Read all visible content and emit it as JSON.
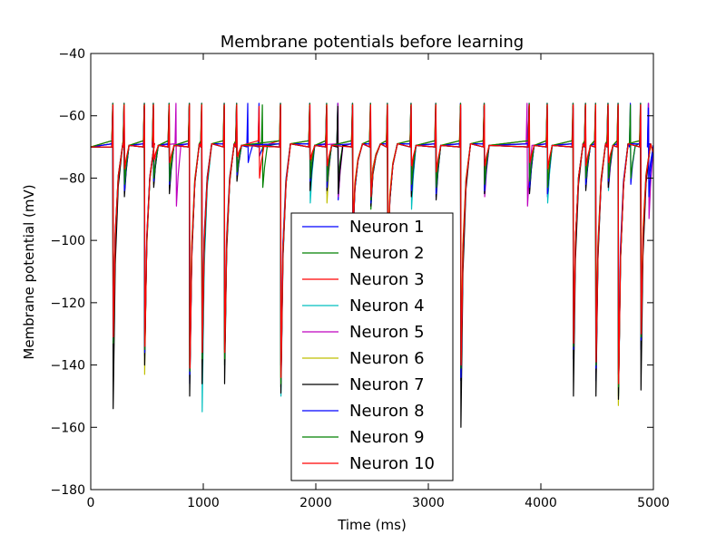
{
  "chart_data": {
    "type": "line",
    "title": "Membrane potentials before learning",
    "xlabel": "Time (ms)",
    "ylabel": "Membrane potential (mV)",
    "xlim": [
      0,
      5000
    ],
    "ylim": [
      -180,
      -40
    ],
    "xticks": [
      0,
      1000,
      2000,
      3000,
      4000,
      5000
    ],
    "yticks": [
      -180,
      -160,
      -140,
      -120,
      -100,
      -80,
      -60,
      -40
    ],
    "grid": false,
    "legend_placement": "lower-center",
    "rest_potential": -70,
    "spike_peak": -56,
    "series": [
      {
        "name": "Neuron 1",
        "color": "#0000ff",
        "spikes": [
          [
            200,
            -135
          ],
          [
            480,
            -135
          ],
          [
            880,
            -146
          ],
          [
            990,
            -135
          ],
          [
            1190,
            -135
          ],
          [
            1690,
            -140
          ],
          [
            2330,
            -100
          ],
          [
            2490,
            -85
          ],
          [
            2640,
            -110
          ],
          [
            3290,
            -145
          ],
          [
            4290,
            -138
          ],
          [
            4490,
            -145
          ],
          [
            4690,
            -143
          ],
          [
            4890,
            -135
          ]
        ],
        "dips": [
          [
            300,
            -85
          ],
          [
            560,
            -80
          ],
          [
            700,
            -83
          ],
          [
            1300,
            -78
          ],
          [
            1400,
            -75
          ],
          [
            1500,
            -73
          ],
          [
            1950,
            -80
          ],
          [
            2100,
            -85
          ],
          [
            2200,
            -87
          ],
          [
            2850,
            -85
          ],
          [
            3070,
            -86
          ],
          [
            3500,
            -85
          ],
          [
            3900,
            -84
          ],
          [
            4060,
            -86
          ],
          [
            4400,
            -83
          ],
          [
            4600,
            -82
          ],
          [
            4800,
            -82
          ],
          [
            4960,
            -80
          ]
        ]
      },
      {
        "name": "Neuron 2",
        "color": "#008000",
        "spikes": [
          [
            200,
            -132
          ],
          [
            480,
            -137
          ],
          [
            880,
            -140
          ],
          [
            990,
            -138
          ],
          [
            1190,
            -140
          ],
          [
            1690,
            -147
          ],
          [
            2330,
            -98
          ],
          [
            2490,
            -90
          ],
          [
            2640,
            -108
          ],
          [
            3290,
            -142
          ],
          [
            4290,
            -135
          ],
          [
            4490,
            -140
          ],
          [
            4690,
            -150
          ],
          [
            4890,
            -132
          ]
        ],
        "dips": [
          [
            300,
            -83
          ],
          [
            560,
            -82
          ],
          [
            700,
            -80
          ],
          [
            1300,
            -80
          ],
          [
            1530,
            -83
          ],
          [
            1950,
            -78
          ],
          [
            2100,
            -82
          ],
          [
            2200,
            -80
          ],
          [
            2850,
            -83
          ],
          [
            3070,
            -84
          ],
          [
            3500,
            -82
          ],
          [
            3900,
            -80
          ],
          [
            4060,
            -83
          ],
          [
            4400,
            -80
          ],
          [
            4600,
            -81
          ],
          [
            4800,
            -80
          ]
        ]
      },
      {
        "name": "Neuron 3",
        "color": "#ff0000",
        "spikes": [
          [
            200,
            -130
          ],
          [
            480,
            -133
          ],
          [
            880,
            -143
          ],
          [
            990,
            -136
          ],
          [
            1190,
            -138
          ],
          [
            1690,
            -145
          ],
          [
            2330,
            -96
          ],
          [
            2490,
            -88
          ],
          [
            2640,
            -105
          ],
          [
            3290,
            -140
          ],
          [
            4290,
            -134
          ],
          [
            4490,
            -141
          ],
          [
            4690,
            -148
          ],
          [
            4890,
            -130
          ]
        ],
        "dips": [
          [
            300,
            -78
          ],
          [
            560,
            -75
          ],
          [
            700,
            -76
          ],
          [
            1300,
            -74
          ],
          [
            1500,
            -80
          ],
          [
            1950,
            -75
          ],
          [
            2100,
            -78
          ],
          [
            2850,
            -78
          ],
          [
            3070,
            -80
          ],
          [
            3500,
            -78
          ],
          [
            3900,
            -77
          ],
          [
            4060,
            -79
          ],
          [
            4400,
            -78
          ],
          [
            4600,
            -77
          ]
        ]
      },
      {
        "name": "Neuron 4",
        "color": "#00bfbf",
        "spikes": [
          [
            200,
            -134
          ],
          [
            480,
            -136
          ],
          [
            880,
            -144
          ],
          [
            990,
            -155
          ],
          [
            1190,
            -139
          ],
          [
            1690,
            -150
          ],
          [
            2330,
            -99
          ],
          [
            2490,
            -87
          ],
          [
            2640,
            -107
          ],
          [
            3290,
            -143
          ],
          [
            4290,
            -136
          ],
          [
            4490,
            -142
          ],
          [
            4690,
            -149
          ],
          [
            4890,
            -133
          ]
        ],
        "dips": [
          [
            300,
            -82
          ],
          [
            560,
            -81
          ],
          [
            700,
            -82
          ],
          [
            1300,
            -79
          ],
          [
            1950,
            -88
          ],
          [
            2100,
            -82
          ],
          [
            2850,
            -90
          ],
          [
            3070,
            -85
          ],
          [
            3500,
            -84
          ],
          [
            3900,
            -83
          ],
          [
            4060,
            -88
          ],
          [
            4400,
            -82
          ],
          [
            4600,
            -84
          ]
        ]
      },
      {
        "name": "Neuron 5",
        "color": "#bf00bf",
        "spikes": [
          [
            200,
            -131
          ],
          [
            480,
            -134
          ],
          [
            880,
            -142
          ],
          [
            990,
            -137
          ],
          [
            1190,
            -137
          ],
          [
            1690,
            -146
          ],
          [
            2330,
            -97
          ],
          [
            2490,
            -86
          ],
          [
            2640,
            -106
          ],
          [
            3290,
            -141
          ],
          [
            4290,
            -135
          ],
          [
            4490,
            -143
          ],
          [
            4690,
            -147
          ],
          [
            4890,
            -131
          ]
        ],
        "dips": [
          [
            300,
            -80
          ],
          [
            560,
            -79
          ],
          [
            760,
            -89
          ],
          [
            1300,
            -77
          ],
          [
            1950,
            -82
          ],
          [
            2200,
            -86
          ],
          [
            2850,
            -82
          ],
          [
            3070,
            -83
          ],
          [
            3500,
            -86
          ],
          [
            3880,
            -89
          ],
          [
            4060,
            -84
          ],
          [
            4400,
            -81
          ],
          [
            4600,
            -83
          ],
          [
            4960,
            -93
          ]
        ]
      },
      {
        "name": "Neuron 6",
        "color": "#bfbf00",
        "spikes": [
          [
            200,
            -133
          ],
          [
            480,
            -143
          ],
          [
            880,
            -141
          ],
          [
            990,
            -139
          ],
          [
            1190,
            -136
          ],
          [
            1690,
            -144
          ],
          [
            2330,
            -95
          ],
          [
            2490,
            -85
          ],
          [
            2640,
            -104
          ],
          [
            3290,
            -139
          ],
          [
            4290,
            -137
          ],
          [
            4490,
            -139
          ],
          [
            4690,
            -153
          ],
          [
            4890,
            -129
          ]
        ],
        "dips": [
          [
            300,
            -81
          ],
          [
            560,
            -82
          ],
          [
            700,
            -79
          ],
          [
            1300,
            -78
          ],
          [
            1950,
            -80
          ],
          [
            2100,
            -88
          ],
          [
            2850,
            -84
          ],
          [
            3070,
            -82
          ],
          [
            3500,
            -83
          ],
          [
            3900,
            -82
          ],
          [
            4060,
            -82
          ],
          [
            4400,
            -79
          ],
          [
            4600,
            -80
          ]
        ]
      },
      {
        "name": "Neuron 7",
        "color": "#000000",
        "spikes": [
          [
            200,
            -154
          ],
          [
            480,
            -140
          ],
          [
            880,
            -150
          ],
          [
            990,
            -146
          ],
          [
            1190,
            -146
          ],
          [
            1690,
            -149
          ],
          [
            2330,
            -100
          ],
          [
            2490,
            -89
          ],
          [
            2640,
            -109
          ],
          [
            3290,
            -160
          ],
          [
            4290,
            -150
          ],
          [
            4490,
            -150
          ],
          [
            4690,
            -151
          ],
          [
            4890,
            -148
          ]
        ],
        "dips": [
          [
            300,
            -86
          ],
          [
            560,
            -83
          ],
          [
            700,
            -85
          ],
          [
            1300,
            -81
          ],
          [
            1950,
            -84
          ],
          [
            2100,
            -84
          ],
          [
            2200,
            -85
          ],
          [
            2850,
            -86
          ],
          [
            3070,
            -87
          ],
          [
            3500,
            -85
          ],
          [
            3900,
            -85
          ],
          [
            4060,
            -85
          ],
          [
            4400,
            -84
          ],
          [
            4600,
            -83
          ]
        ]
      },
      {
        "name": "Neuron 8",
        "color": "#0000ff",
        "spikes": [
          [
            200,
            -132
          ],
          [
            480,
            -136
          ],
          [
            880,
            -143
          ],
          [
            990,
            -137
          ],
          [
            1190,
            -137
          ],
          [
            1690,
            -145
          ],
          [
            2330,
            -98
          ],
          [
            2490,
            -88
          ],
          [
            2640,
            -107
          ],
          [
            3290,
            -144
          ],
          [
            4290,
            -135
          ],
          [
            4490,
            -141
          ],
          [
            4690,
            -146
          ],
          [
            4890,
            -132
          ]
        ],
        "dips": [
          [
            300,
            -84
          ],
          [
            560,
            -81
          ],
          [
            700,
            -82
          ],
          [
            1300,
            -79
          ],
          [
            1950,
            -81
          ],
          [
            2100,
            -83
          ],
          [
            2850,
            -84
          ],
          [
            3070,
            -85
          ],
          [
            3500,
            -84
          ],
          [
            3900,
            -83
          ],
          [
            4060,
            -85
          ],
          [
            4400,
            -82
          ],
          [
            4600,
            -81
          ],
          [
            4960,
            -86
          ]
        ]
      },
      {
        "name": "Neuron 9",
        "color": "#008000",
        "spikes": [
          [
            200,
            -133
          ],
          [
            480,
            -135
          ],
          [
            880,
            -142
          ],
          [
            990,
            -138
          ],
          [
            1190,
            -138
          ],
          [
            1690,
            -146
          ],
          [
            2330,
            -97
          ],
          [
            2490,
            -87
          ],
          [
            2640,
            -106
          ],
          [
            3290,
            -141
          ],
          [
            4290,
            -134
          ],
          [
            4490,
            -140
          ],
          [
            4690,
            -147
          ],
          [
            4890,
            -131
          ]
        ],
        "dips": [
          [
            300,
            -82
          ],
          [
            560,
            -80
          ],
          [
            700,
            -81
          ],
          [
            1300,
            -78
          ],
          [
            1950,
            -80
          ],
          [
            2100,
            -81
          ],
          [
            2850,
            -82
          ],
          [
            3070,
            -83
          ],
          [
            3500,
            -82
          ],
          [
            3900,
            -81
          ],
          [
            4060,
            -83
          ],
          [
            4400,
            -80
          ],
          [
            4600,
            -80
          ]
        ]
      },
      {
        "name": "Neuron 10",
        "color": "#ff0000",
        "spikes": [
          [
            200,
            -131
          ],
          [
            480,
            -134
          ],
          [
            880,
            -141
          ],
          [
            990,
            -136
          ],
          [
            1190,
            -136
          ],
          [
            1690,
            -144
          ],
          [
            2330,
            -96
          ],
          [
            2490,
            -86
          ],
          [
            2640,
            -105
          ],
          [
            3290,
            -140
          ],
          [
            4290,
            -133
          ],
          [
            4490,
            -139
          ],
          [
            4690,
            -146
          ],
          [
            4890,
            -130
          ]
        ],
        "dips": [
          [
            300,
            -77
          ],
          [
            560,
            -74
          ],
          [
            700,
            -75
          ],
          [
            1300,
            -73
          ],
          [
            1950,
            -74
          ],
          [
            2100,
            -76
          ],
          [
            2850,
            -76
          ],
          [
            3070,
            -78
          ],
          [
            3500,
            -76
          ],
          [
            3900,
            -75
          ],
          [
            4060,
            -77
          ],
          [
            4400,
            -76
          ],
          [
            4600,
            -75
          ]
        ]
      }
    ]
  }
}
